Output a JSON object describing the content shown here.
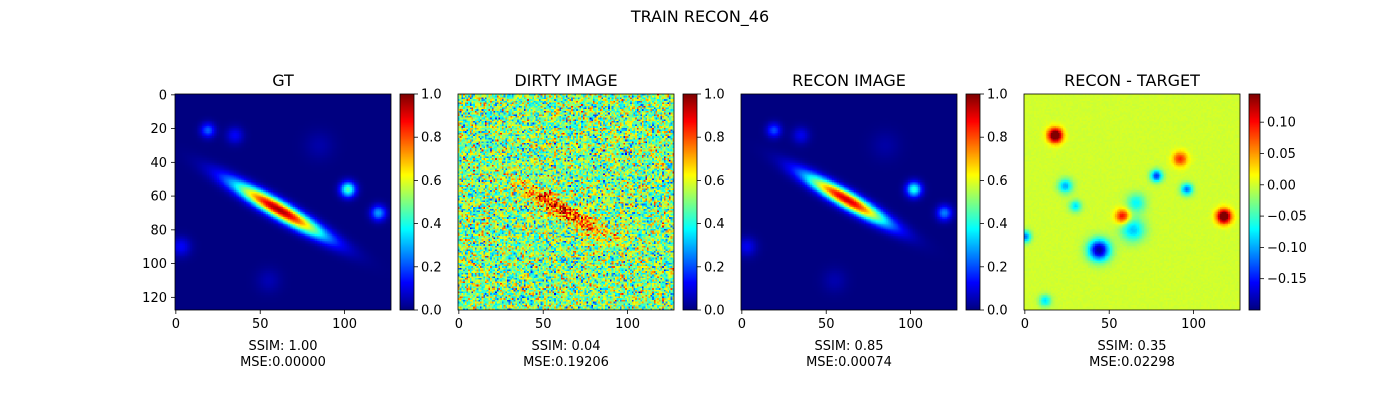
{
  "figure": {
    "suptitle": "TRAIN RECON_46"
  },
  "chart_data": [
    {
      "type": "heatmap",
      "title": "GT",
      "colormap": "jet",
      "image_size": [
        128,
        128
      ],
      "x_ticks": [
        0,
        50,
        100
      ],
      "y_ticks": [
        0,
        20,
        40,
        60,
        80,
        100,
        120
      ],
      "colorbar": {
        "range": [
          0.0,
          1.0
        ],
        "ticks": [
          "0.0",
          "0.2",
          "0.4",
          "0.6",
          "0.8",
          "1.0"
        ]
      },
      "metrics": {
        "ssim": "SSIM: 1.00",
        "mse": "MSE:0.00000"
      },
      "content": "recon-like"
    },
    {
      "type": "heatmap",
      "title": "DIRTY IMAGE",
      "colormap": "jet",
      "image_size": [
        128,
        128
      ],
      "x_ticks": [
        0,
        50,
        100
      ],
      "colorbar": {
        "range": [
          0.0,
          1.0
        ],
        "ticks": [
          "0.0",
          "0.2",
          "0.4",
          "0.6",
          "0.8",
          "1.0"
        ]
      },
      "metrics": {
        "ssim": "SSIM: 0.04",
        "mse": "MSE:0.19206"
      },
      "content": "noisy"
    },
    {
      "type": "heatmap",
      "title": "RECON IMAGE",
      "colormap": "jet",
      "image_size": [
        128,
        128
      ],
      "x_ticks": [
        0,
        50,
        100
      ],
      "colorbar": {
        "range": [
          0.0,
          1.0
        ],
        "ticks": [
          "0.0",
          "0.2",
          "0.4",
          "0.6",
          "0.8",
          "1.0"
        ]
      },
      "metrics": {
        "ssim": "SSIM: 0.85",
        "mse": "MSE:0.00074"
      },
      "content": "recon"
    },
    {
      "type": "heatmap",
      "title": "RECON - TARGET",
      "colormap": "jet",
      "image_size": [
        128,
        128
      ],
      "x_ticks": [
        0,
        50,
        100
      ],
      "colorbar": {
        "range": [
          -0.2,
          0.145
        ],
        "ticks": [
          "0.10",
          "0.05",
          "0.00",
          "−0.05",
          "−0.10",
          "−0.15"
        ]
      },
      "metrics": {
        "ssim": "SSIM: 0.35",
        "mse": "MSE:0.02298"
      },
      "content": "residual"
    }
  ]
}
